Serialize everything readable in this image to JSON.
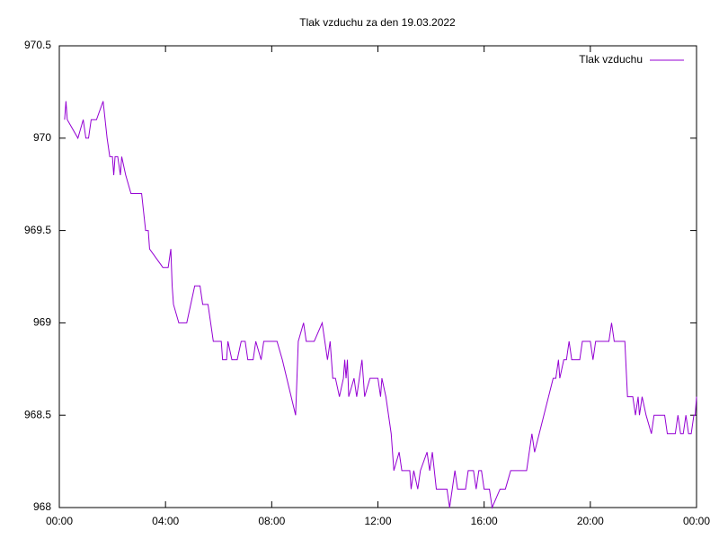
{
  "chart_data": {
    "type": "line",
    "title": "Tlak vzduchu za den 19.03.2022",
    "x": [
      0.2,
      0.25,
      0.3,
      0.7,
      0.9,
      1.0,
      1.1,
      1.2,
      1.4,
      1.65,
      1.8,
      1.9,
      2.0,
      2.05,
      2.1,
      2.2,
      2.3,
      2.35,
      2.5,
      2.7,
      3.1,
      3.25,
      3.35,
      3.4,
      3.9,
      4.1,
      4.2,
      4.25,
      4.3,
      4.5,
      4.8,
      5.1,
      5.3,
      5.4,
      5.6,
      5.7,
      5.8,
      6.0,
      6.1,
      6.15,
      6.3,
      6.35,
      6.5,
      6.7,
      6.85,
      7.0,
      7.1,
      7.3,
      7.4,
      7.6,
      7.7,
      8.2,
      8.4,
      8.9,
      9.0,
      9.2,
      9.3,
      9.6,
      9.9,
      10.0,
      10.1,
      10.2,
      10.3,
      10.4,
      10.55,
      10.7,
      10.75,
      10.8,
      10.85,
      10.9,
      11.1,
      11.2,
      11.3,
      11.4,
      11.5,
      11.7,
      12.0,
      12.1,
      12.15,
      12.3,
      12.5,
      12.6,
      12.8,
      12.9,
      13.2,
      13.25,
      13.35,
      13.5,
      13.6,
      13.85,
      13.95,
      14.05,
      14.2,
      14.6,
      14.7,
      14.9,
      15.0,
      15.3,
      15.4,
      15.6,
      15.7,
      15.8,
      15.9,
      16.0,
      16.2,
      16.3,
      16.6,
      16.8,
      17.0,
      17.6,
      17.8,
      17.9,
      18.6,
      18.7,
      18.8,
      18.85,
      19.0,
      19.1,
      19.2,
      19.3,
      19.6,
      19.7,
      20.0,
      20.1,
      20.2,
      20.7,
      20.8,
      20.9,
      21.3,
      21.4,
      21.6,
      21.7,
      21.8,
      21.85,
      21.95,
      22.1,
      22.3,
      22.4,
      22.8,
      22.9,
      23.2,
      23.3,
      23.4,
      23.5,
      23.6,
      23.7,
      23.8,
      23.9,
      23.95,
      24.0
    ],
    "series": [
      {
        "name": "Tlak vzduchu",
        "color": "#9400d3",
        "values": [
          970.1,
          970.2,
          970.1,
          970.0,
          970.1,
          970.0,
          970.0,
          970.1,
          970.1,
          970.2,
          970.0,
          969.9,
          969.9,
          969.8,
          969.9,
          969.9,
          969.8,
          969.9,
          969.8,
          969.7,
          969.7,
          969.5,
          969.5,
          969.4,
          969.3,
          969.3,
          969.4,
          969.2,
          969.1,
          969.0,
          969.0,
          969.2,
          969.2,
          969.1,
          969.1,
          969.0,
          968.9,
          968.9,
          968.9,
          968.8,
          968.8,
          968.9,
          968.8,
          968.8,
          968.9,
          968.9,
          968.8,
          968.8,
          968.9,
          968.8,
          968.9,
          968.9,
          968.8,
          968.5,
          968.9,
          969.0,
          968.9,
          968.9,
          969.0,
          968.9,
          968.8,
          968.9,
          968.7,
          968.7,
          968.6,
          968.7,
          968.8,
          968.7,
          968.8,
          968.6,
          968.7,
          968.6,
          968.7,
          968.8,
          968.6,
          968.7,
          968.7,
          968.6,
          968.7,
          968.6,
          968.4,
          968.2,
          968.3,
          968.2,
          968.2,
          968.1,
          968.2,
          968.1,
          968.2,
          968.3,
          968.2,
          968.3,
          968.1,
          968.1,
          968.0,
          968.2,
          968.1,
          968.1,
          968.2,
          968.2,
          968.1,
          968.2,
          968.2,
          968.1,
          968.1,
          968.0,
          968.1,
          968.1,
          968.2,
          968.2,
          968.4,
          968.3,
          968.7,
          968.7,
          968.8,
          968.7,
          968.8,
          968.8,
          968.9,
          968.8,
          968.8,
          968.9,
          968.9,
          968.8,
          968.9,
          968.9,
          969.0,
          968.9,
          968.9,
          968.6,
          968.6,
          968.5,
          968.6,
          968.5,
          968.6,
          968.5,
          968.4,
          968.5,
          968.5,
          968.4,
          968.4,
          968.5,
          968.4,
          968.4,
          968.5,
          968.4,
          968.4,
          968.5,
          968.5,
          968.6
        ]
      }
    ],
    "xlim": [
      0,
      24
    ],
    "xticks": [
      {
        "value": 0,
        "label": "00:00"
      },
      {
        "value": 4,
        "label": "04:00"
      },
      {
        "value": 8,
        "label": "08:00"
      },
      {
        "value": 12,
        "label": "12:00"
      },
      {
        "value": 16,
        "label": "16:00"
      },
      {
        "value": 20,
        "label": "20:00"
      },
      {
        "value": 24,
        "label": "00:00"
      }
    ],
    "ylim": [
      968,
      970.5
    ],
    "yticks": [
      968,
      968.5,
      969,
      969.5,
      970,
      970.5
    ],
    "grid": false,
    "legend": "upper right"
  }
}
